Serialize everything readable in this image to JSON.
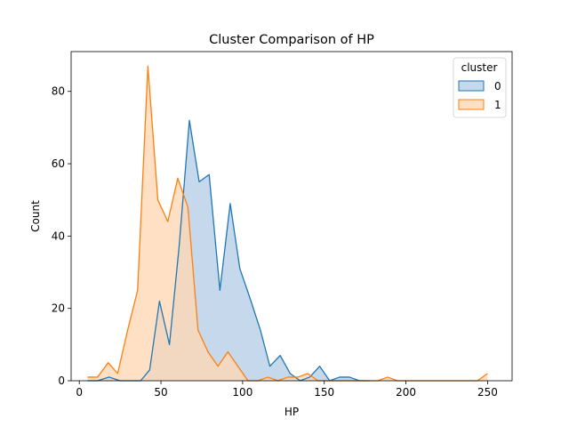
{
  "chart_data": {
    "type": "area",
    "title": "Cluster Comparison of HP",
    "xlabel": "HP",
    "ylabel": "Count",
    "xlim": [
      -5,
      265
    ],
    "ylim": [
      0,
      91
    ],
    "xticks": [
      0,
      50,
      100,
      150,
      200,
      250
    ],
    "yticks": [
      0,
      20,
      40,
      60,
      80
    ],
    "grid": false,
    "legend": {
      "title": "cluster",
      "placement": "top-right"
    },
    "colors": {
      "series0_line": "#1f77b4",
      "series0_fill": "#c6d9ec",
      "series1_line": "#ff7f0e",
      "series1_fill": "#ffd7b5"
    },
    "series": [
      {
        "name": "0",
        "x": [
          5,
          11.2,
          18.3,
          24.9,
          31.5,
          37.6,
          43.1,
          49.1,
          55.2,
          61.1,
          67.4,
          73.4,
          79.5,
          86.1,
          92.4,
          98.3,
          104.4,
          110.9,
          116.7,
          123.0,
          129.1,
          135.2,
          141.1,
          147.2,
          153.3,
          159.4,
          165.4,
          171.5,
          177.6
        ],
        "y": [
          0,
          0,
          1,
          0,
          0,
          0,
          3,
          22,
          10,
          37,
          72,
          55,
          57,
          25,
          49,
          31,
          23,
          14,
          4,
          7,
          2,
          0,
          1,
          4,
          0,
          1,
          1,
          0,
          0
        ]
      },
      {
        "name": "1",
        "x": [
          5,
          11.2,
          17.7,
          23.5,
          29.6,
          35.7,
          42.0,
          48.1,
          54.2,
          60.3,
          66.5,
          72.7,
          78.8,
          84.9,
          91.0,
          97.1,
          103.3,
          109.4,
          115.5,
          121.6,
          127.7,
          133.8,
          139.9,
          146.1,
          152.2,
          164.4,
          176.6,
          182.7,
          188.8,
          194.9,
          201,
          207.1,
          213.3,
          219.4,
          225.5,
          231.6,
          237.7,
          243.8,
          250.0
        ],
        "y": [
          1,
          1,
          5,
          2,
          14,
          25,
          87,
          50,
          44,
          56,
          48,
          14,
          8,
          4,
          8,
          4,
          0,
          0,
          1,
          0,
          1,
          1,
          2,
          0,
          0,
          0,
          0,
          0,
          1,
          0,
          0,
          0,
          0,
          0,
          0,
          0,
          0,
          0,
          2
        ]
      }
    ]
  }
}
